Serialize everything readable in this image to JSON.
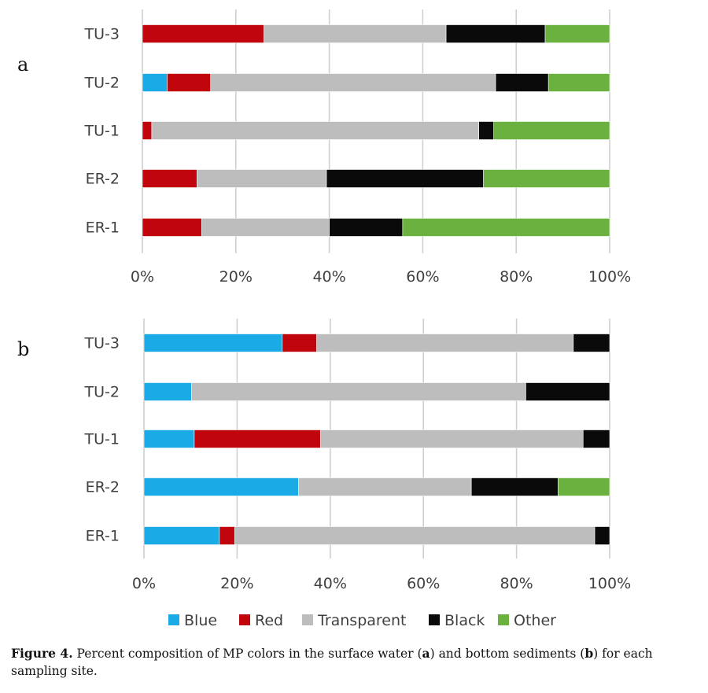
{
  "chart_data": [
    {
      "type": "bar",
      "orientation": "horizontal",
      "stacked": "percent",
      "panel_label": "a",
      "categories": [
        "ER-1",
        "ER-2",
        "TU-1",
        "TU-2",
        "TU-3"
      ],
      "series": [
        {
          "name": "Blue",
          "values": [
            0,
            0,
            0,
            5.3,
            0
          ]
        },
        {
          "name": "Red",
          "values": [
            12.7,
            11.7,
            2.0,
            9.3,
            26.0
          ]
        },
        {
          "name": "Transparent",
          "values": [
            27.3,
            27.7,
            70.0,
            61.0,
            39.0
          ]
        },
        {
          "name": "Black",
          "values": [
            15.7,
            33.6,
            3.2,
            11.3,
            21.2
          ]
        },
        {
          "name": "Other",
          "values": [
            44.3,
            27.0,
            24.8,
            13.1,
            13.8
          ]
        }
      ],
      "xlim": [
        0,
        100
      ],
      "xticks": [
        "0%",
        "20%",
        "40%",
        "60%",
        "80%",
        "100%"
      ],
      "grid": "vertical"
    },
    {
      "type": "bar",
      "orientation": "horizontal",
      "stacked": "percent",
      "panel_label": "b",
      "categories": [
        "ER-1",
        "ER-2",
        "TU-1",
        "TU-2",
        "TU-3"
      ],
      "series": [
        {
          "name": "Blue",
          "values": [
            16.2,
            33.2,
            10.8,
            10.2,
            29.7
          ]
        },
        {
          "name": "Red",
          "values": [
            3.3,
            0,
            27.1,
            0,
            7.4
          ]
        },
        {
          "name": "Transparent",
          "values": [
            77.3,
            37.1,
            56.4,
            71.8,
            55.1
          ]
        },
        {
          "name": "Black",
          "values": [
            3.2,
            18.6,
            5.7,
            18.0,
            7.8
          ]
        },
        {
          "name": "Other",
          "values": [
            0,
            11.1,
            0,
            0,
            0
          ]
        }
      ],
      "xlim": [
        0,
        100
      ],
      "xticks": [
        "0%",
        "20%",
        "40%",
        "60%",
        "80%",
        "100%"
      ],
      "grid": "vertical"
    }
  ],
  "legend": [
    {
      "name": "Blue",
      "color": "#1aabe6"
    },
    {
      "name": "Red",
      "color": "#c0050c"
    },
    {
      "name": "Transparent",
      "color": "#bdbdbd"
    },
    {
      "name": "Black",
      "color": "#0a0a0a"
    },
    {
      "name": "Other",
      "color": "#6ab13f"
    }
  ],
  "caption": {
    "label": "Figure 4.",
    "text_1": " Percent composition of MP colors in the surface water (",
    "mark_a": "a",
    "text_2": ") and bottom sediments (",
    "mark_b": "b",
    "text_3": ") for each sampling site."
  }
}
